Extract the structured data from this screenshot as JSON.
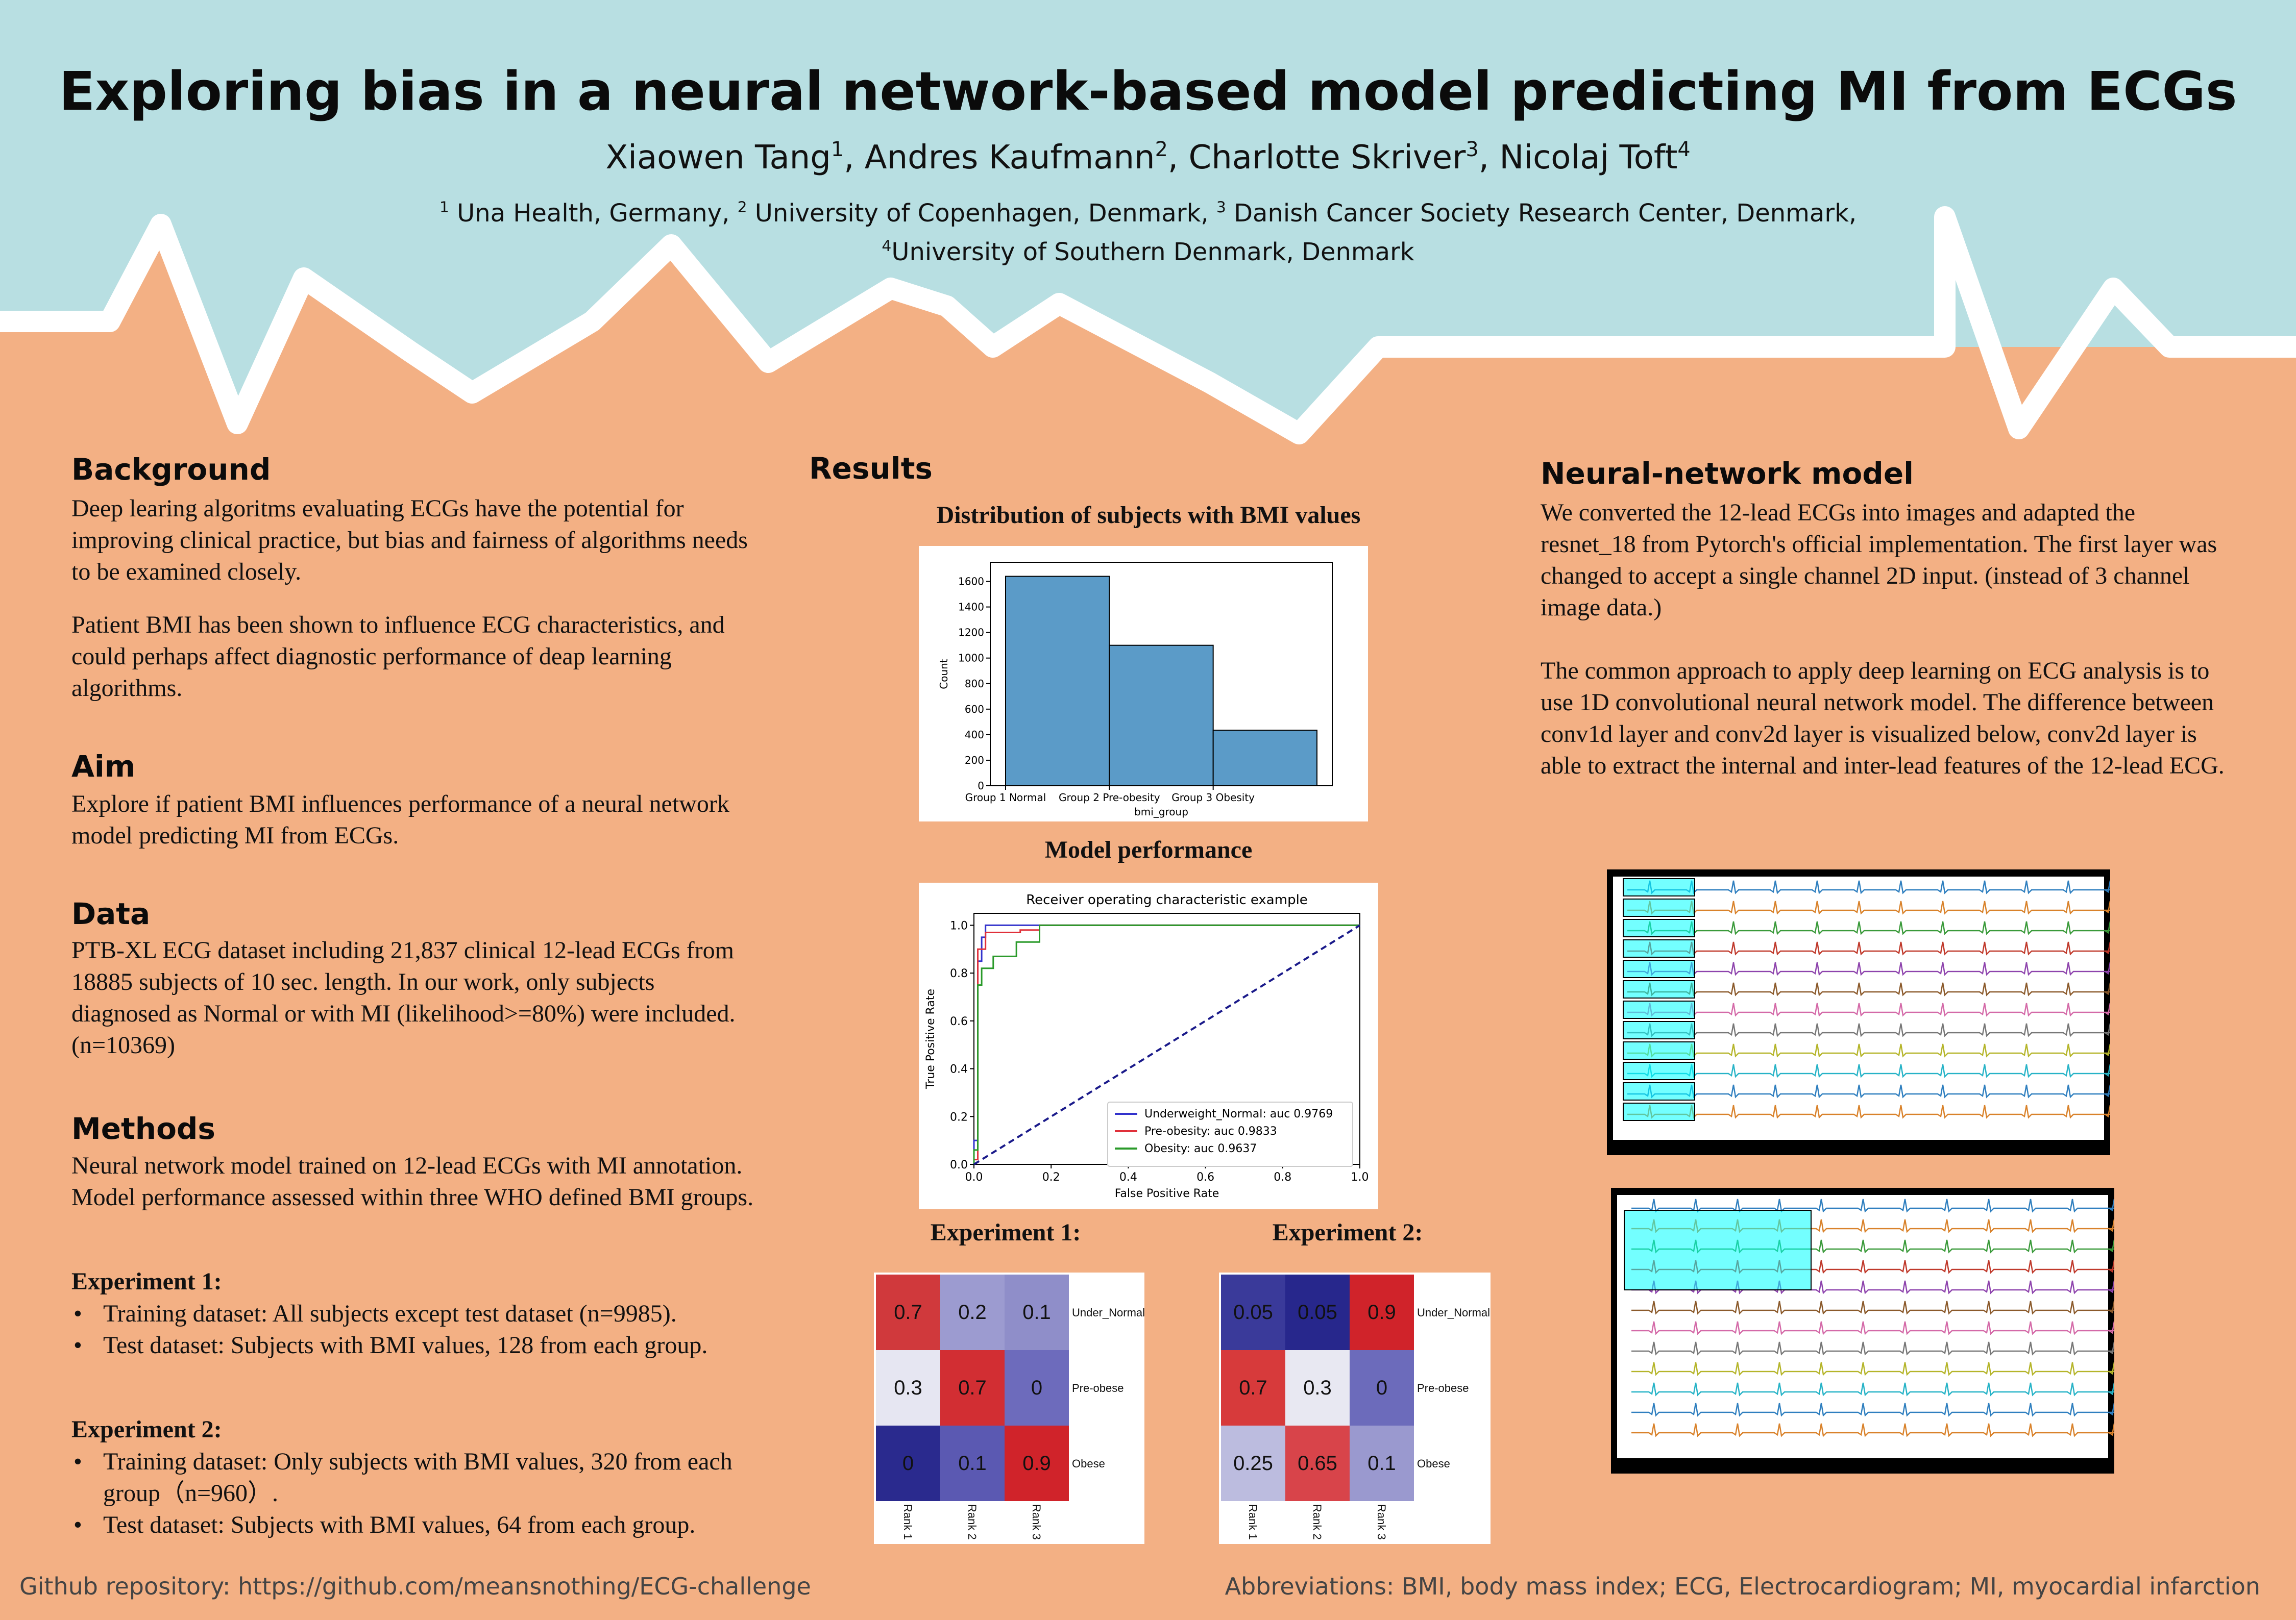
{
  "header": {
    "title": "Exploring bias in a neural network-based model predicting MI from ECGs",
    "authors": [
      {
        "name": "Xiaowen Tang",
        "sup": "1"
      },
      {
        "name": "Andres Kaufmann",
        "sup": "2"
      },
      {
        "name": "Charlotte Skriver",
        "sup": "3"
      },
      {
        "name": "Nicolaj Toft",
        "sup": "4"
      }
    ],
    "affil_line1": [
      {
        "sup": "1",
        "text": " Una Health, Germany, "
      },
      {
        "sup": "2",
        "text": " University of Copenhagen, Denmark, "
      },
      {
        "sup": "3",
        "text": " Danish Cancer Society Research Center, Denmark,"
      }
    ],
    "affil_line2": {
      "sup": "4",
      "text": "University of Southern Denmark, Denmark"
    }
  },
  "left": {
    "background_heading": "Background",
    "background_p1": "Deep learing algoritms evaluating ECGs have the potential for improving clinical practice, but bias and fairness of algorithms needs to be examined closely.",
    "background_p2": "Patient BMI has been shown to influence ECG characteristics, and could perhaps affect diagnostic performance of deap learning algorithms.",
    "aim_heading": "Aim",
    "aim_p": "Explore if patient BMI influences performance of a neural network model predicting MI from ECGs.",
    "data_heading": "Data",
    "data_p": "PTB-XL ECG dataset including 21,837 clinical 12-lead ECGs from 18885 subjects of 10 sec. length. In our work, only subjects diagnosed as Normal or with MI (likelihood>=80%) were included. (n=10369)",
    "methods_heading": "Methods",
    "methods_p": "Neural network model trained on 12-lead ECGs with MI annotation. Model performance assessed within three WHO defined BMI groups.",
    "exp1_heading": "Experiment 1:",
    "exp1_items": [
      "Training dataset: All subjects except test dataset (n=9985).",
      "Test dataset: Subjects with BMI values, 128 from each group."
    ],
    "exp2_heading": "Experiment 2:",
    "exp2_items": [
      "Training dataset: Only subjects with BMI values, 320 from each group（n=960）.",
      "Test dataset: Subjects with BMI values, 64 from each group."
    ]
  },
  "middle": {
    "results_heading": "Results",
    "hist_title": "Distribution of subjects with BMI values",
    "perf_title": "Model performance",
    "exp1_title": "Experiment 1:",
    "exp2_title": "Experiment 2:"
  },
  "right": {
    "nn_heading": "Neural-network model",
    "nn_p1": "We converted the 12-lead ECGs into images and adapted the resnet_18 from Pytorch's official implementation. The first layer was changed to accept a single channel 2D input. (instead of 3 channel image data.)",
    "nn_p2": "The common approach to apply deep learning on ECG analysis is to use 1D convolutional neural network model. The difference between conv1d layer and conv2d layer is visualized below, conv2d layer is able to extract the internal and inter-lead features of the 12-lead ECG."
  },
  "footer": {
    "github": "Github repository: https://github.com/meansnothing/ECG-challenge",
    "abbrev": "Abbreviations: BMI, body mass index; ECG, Electrocardiogram; MI, myocardial infarction"
  },
  "colors": {
    "sky": "#b8dfe2",
    "page": "#f3b084",
    "wave": "#ffffff",
    "bar": "#5b9bc8",
    "roc_blue": "#3333cc",
    "roc_red": "#e0303a",
    "roc_green": "#2a9a2a",
    "diag": "#1a1a8a"
  },
  "chart_data": [
    {
      "type": "bar",
      "categories": [
        "Group 1 Normal",
        "Group 2 Pre-obesity",
        "Group 3 Obesity"
      ],
      "values": [
        1640,
        1100,
        435
      ],
      "xlabel": "bmi_group",
      "ylabel": "Count",
      "ylim": [
        0,
        1750
      ],
      "yticks": [
        0,
        200,
        400,
        600,
        800,
        1000,
        1200,
        1400,
        1600
      ]
    },
    {
      "type": "line",
      "title": "Receiver operating characteristic example",
      "xlabel": "False Positive Rate",
      "ylabel": "True Positive Rate",
      "xlim": [
        0.0,
        1.0
      ],
      "ylim": [
        0.0,
        1.05
      ],
      "ticks": [
        "0.0",
        "0.2",
        "0.4",
        "0.6",
        "0.8",
        "1.0"
      ],
      "legend_position": "bottom-right",
      "series": [
        {
          "name": "Underweight_Normal: auc 0.9769",
          "color": "#3333cc",
          "x": [
            0,
            0,
            0.01,
            0.01,
            0.02,
            0.02,
            0.03,
            0.03,
            1.0
          ],
          "y": [
            0,
            0.1,
            0.1,
            0.85,
            0.85,
            0.95,
            0.95,
            1.0,
            1.0
          ]
        },
        {
          "name": "Pre-obesity: auc 0.9833",
          "color": "#e0303a",
          "x": [
            0,
            0,
            0.01,
            0.01,
            0.03,
            0.03,
            0.12,
            0.12,
            0.17,
            0.17,
            1.0
          ],
          "y": [
            0,
            0.02,
            0.02,
            0.9,
            0.9,
            0.97,
            0.97,
            0.98,
            0.98,
            1.0,
            1.0
          ]
        },
        {
          "name": "Obesity: auc 0.9637",
          "color": "#2a9a2a",
          "x": [
            0,
            0,
            0.01,
            0.01,
            0.02,
            0.02,
            0.05,
            0.05,
            0.11,
            0.11,
            0.17,
            0.17,
            1.0
          ],
          "y": [
            0,
            0.06,
            0.06,
            0.75,
            0.75,
            0.82,
            0.82,
            0.87,
            0.87,
            0.93,
            0.93,
            1.0,
            1.0
          ]
        },
        {
          "name": "",
          "color": "#1a1a8a",
          "dashed": true,
          "x": [
            0,
            1
          ],
          "y": [
            0,
            1
          ]
        }
      ]
    },
    {
      "type": "heatmap",
      "title": "Experiment 1:",
      "rows": [
        "Under_Normal",
        "Pre-obese",
        "Obese"
      ],
      "cols": [
        "Rank 1",
        "Rank 2",
        "Rank 3"
      ],
      "values": [
        [
          "0.7",
          "0.2",
          "0.1"
        ],
        [
          "0.3",
          "0.7",
          "0"
        ],
        [
          "0",
          "0.1",
          "0.9"
        ]
      ],
      "cell_colors": [
        [
          "#d0393c",
          "#9c9bd0",
          "#8f8ec9"
        ],
        [
          "#e6e6f2",
          "#d22e33",
          "#6d6bbc"
        ],
        [
          "#2a2a8e",
          "#5b59b2",
          "#d0232a"
        ]
      ]
    },
    {
      "type": "heatmap",
      "title": "Experiment 2:",
      "rows": [
        "Under_Normal",
        "Pre-obese",
        "Obese"
      ],
      "cols": [
        "Rank 1",
        "Rank 2",
        "Rank 3"
      ],
      "values": [
        [
          "0.05",
          "0.05",
          "0.9"
        ],
        [
          "0.7",
          "0.3",
          "0"
        ],
        [
          "0.25",
          "0.65",
          "0.1"
        ]
      ],
      "cell_colors": [
        [
          "#3a3a9a",
          "#27278c",
          "#d0232a"
        ],
        [
          "#d73a3b",
          "#e8e8f2",
          "#6c6bbb"
        ],
        [
          "#bcbcdf",
          "#d8444a",
          "#9a99cf"
        ]
      ]
    }
  ]
}
